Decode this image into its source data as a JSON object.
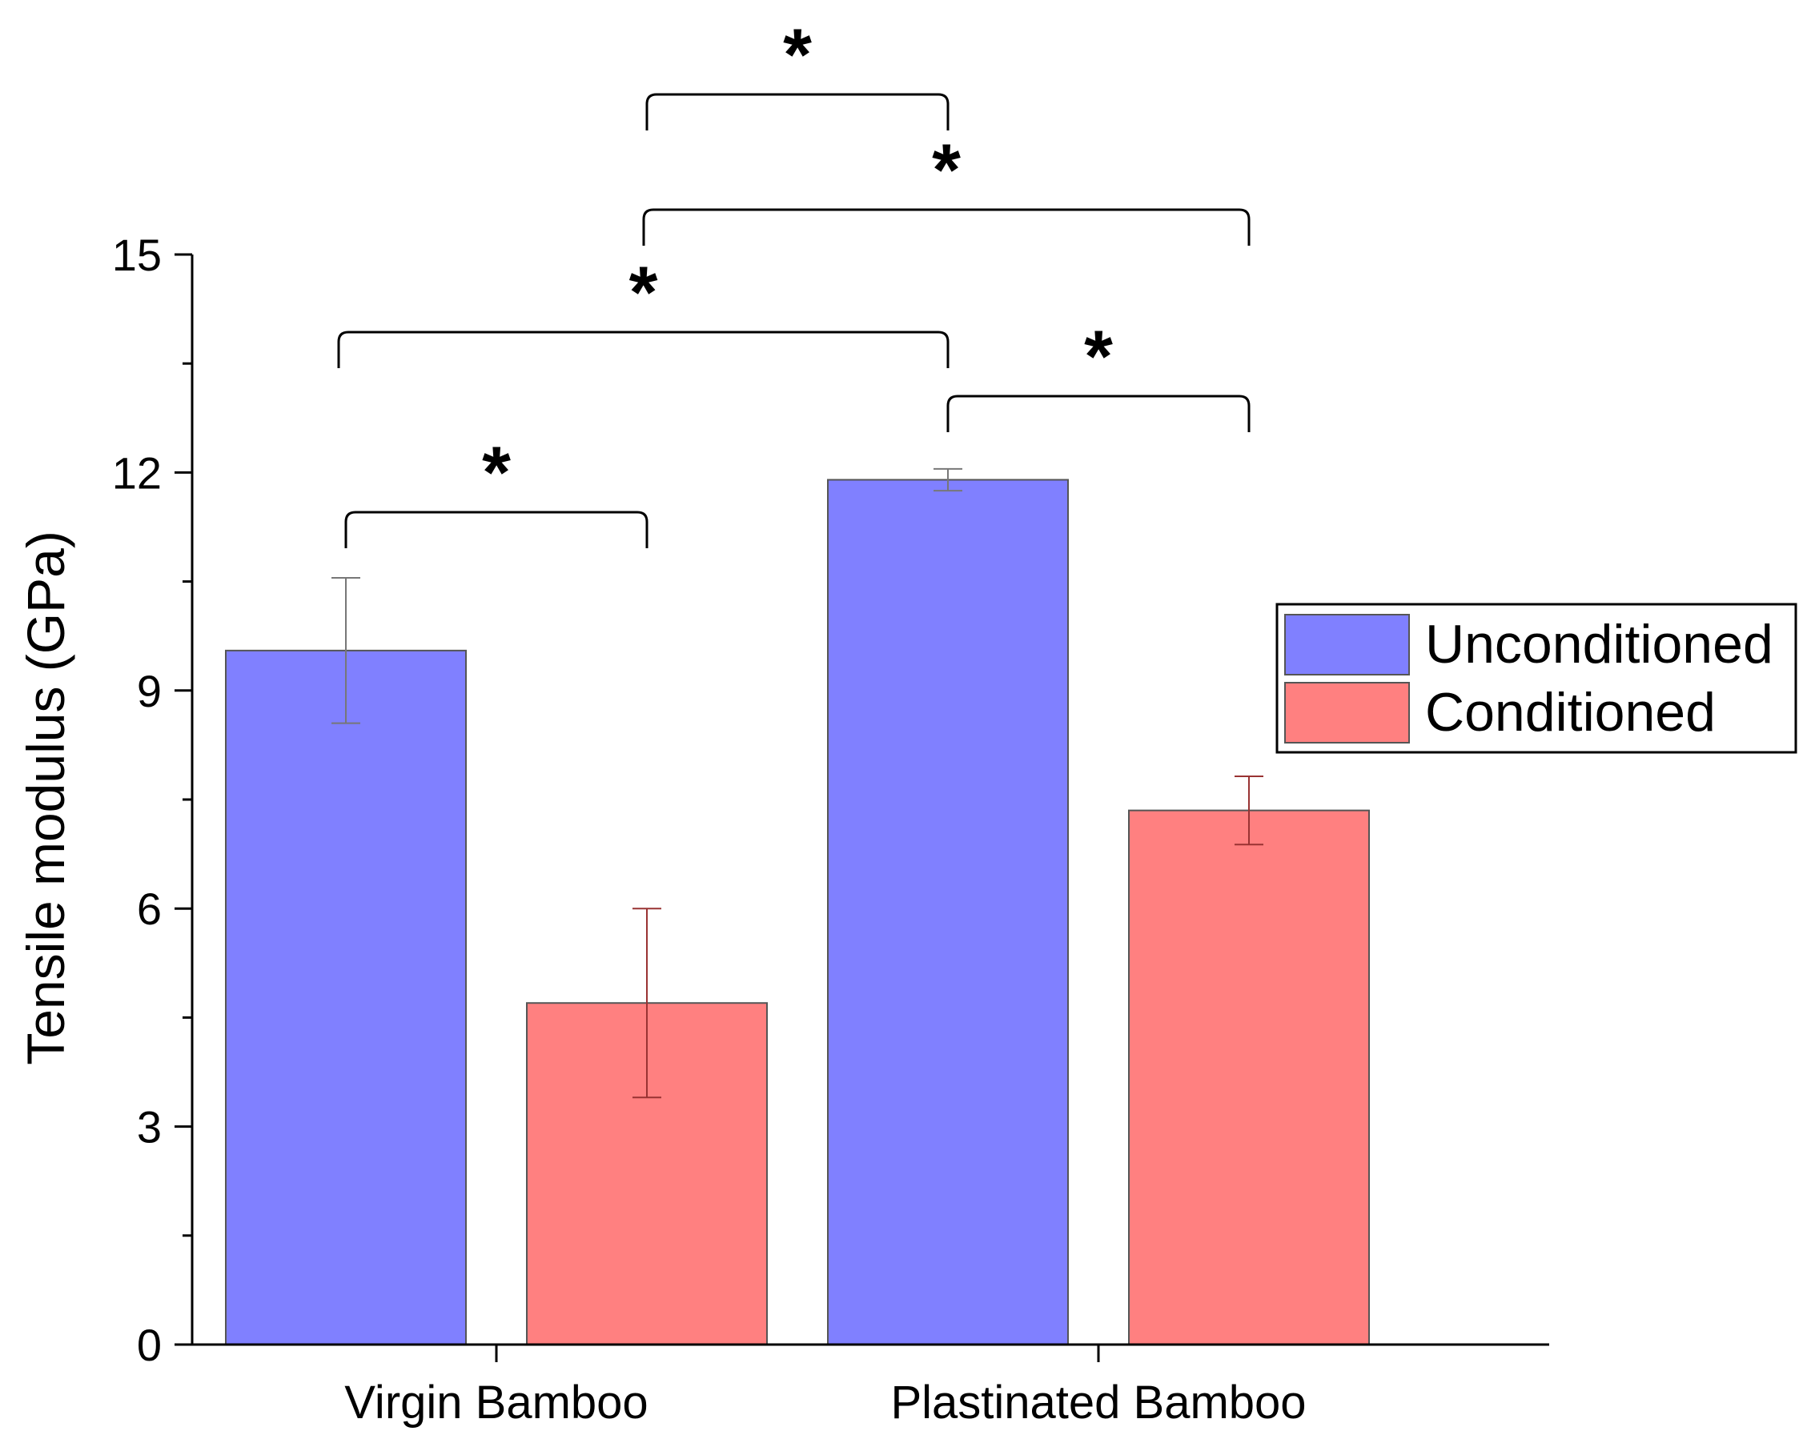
{
  "chart_data": {
    "type": "bar",
    "title": "",
    "xlabel": "",
    "ylabel": "Tensile modulus (GPa)",
    "ylim": [
      0,
      15
    ],
    "yticks": [
      0,
      3,
      6,
      9,
      12,
      15
    ],
    "grid": false,
    "legend_position": "right",
    "categories": [
      "Virgin Bamboo",
      "Plastinated Bamboo"
    ],
    "series": [
      {
        "name": "Unconditioned",
        "color": "#8080ff",
        "values": [
          9.55,
          11.9
        ],
        "errors": [
          1.0,
          0.15
        ]
      },
      {
        "name": "Conditioned",
        "color": "#ff8080",
        "values": [
          4.7,
          7.35
        ],
        "errors": [
          1.3,
          0.47
        ]
      }
    ],
    "significance": [
      {
        "from": [
          0,
          0
        ],
        "to": [
          0,
          1
        ],
        "label": "*"
      },
      {
        "from": [
          0,
          0
        ],
        "to": [
          1,
          0
        ],
        "label": "*"
      },
      {
        "from": [
          1,
          0
        ],
        "to": [
          1,
          1
        ],
        "label": "*"
      },
      {
        "from": [
          0,
          1
        ],
        "to": [
          1,
          1
        ],
        "label": "*"
      },
      {
        "from": [
          0,
          1
        ],
        "to": [
          1,
          0
        ],
        "label": "*"
      }
    ]
  }
}
